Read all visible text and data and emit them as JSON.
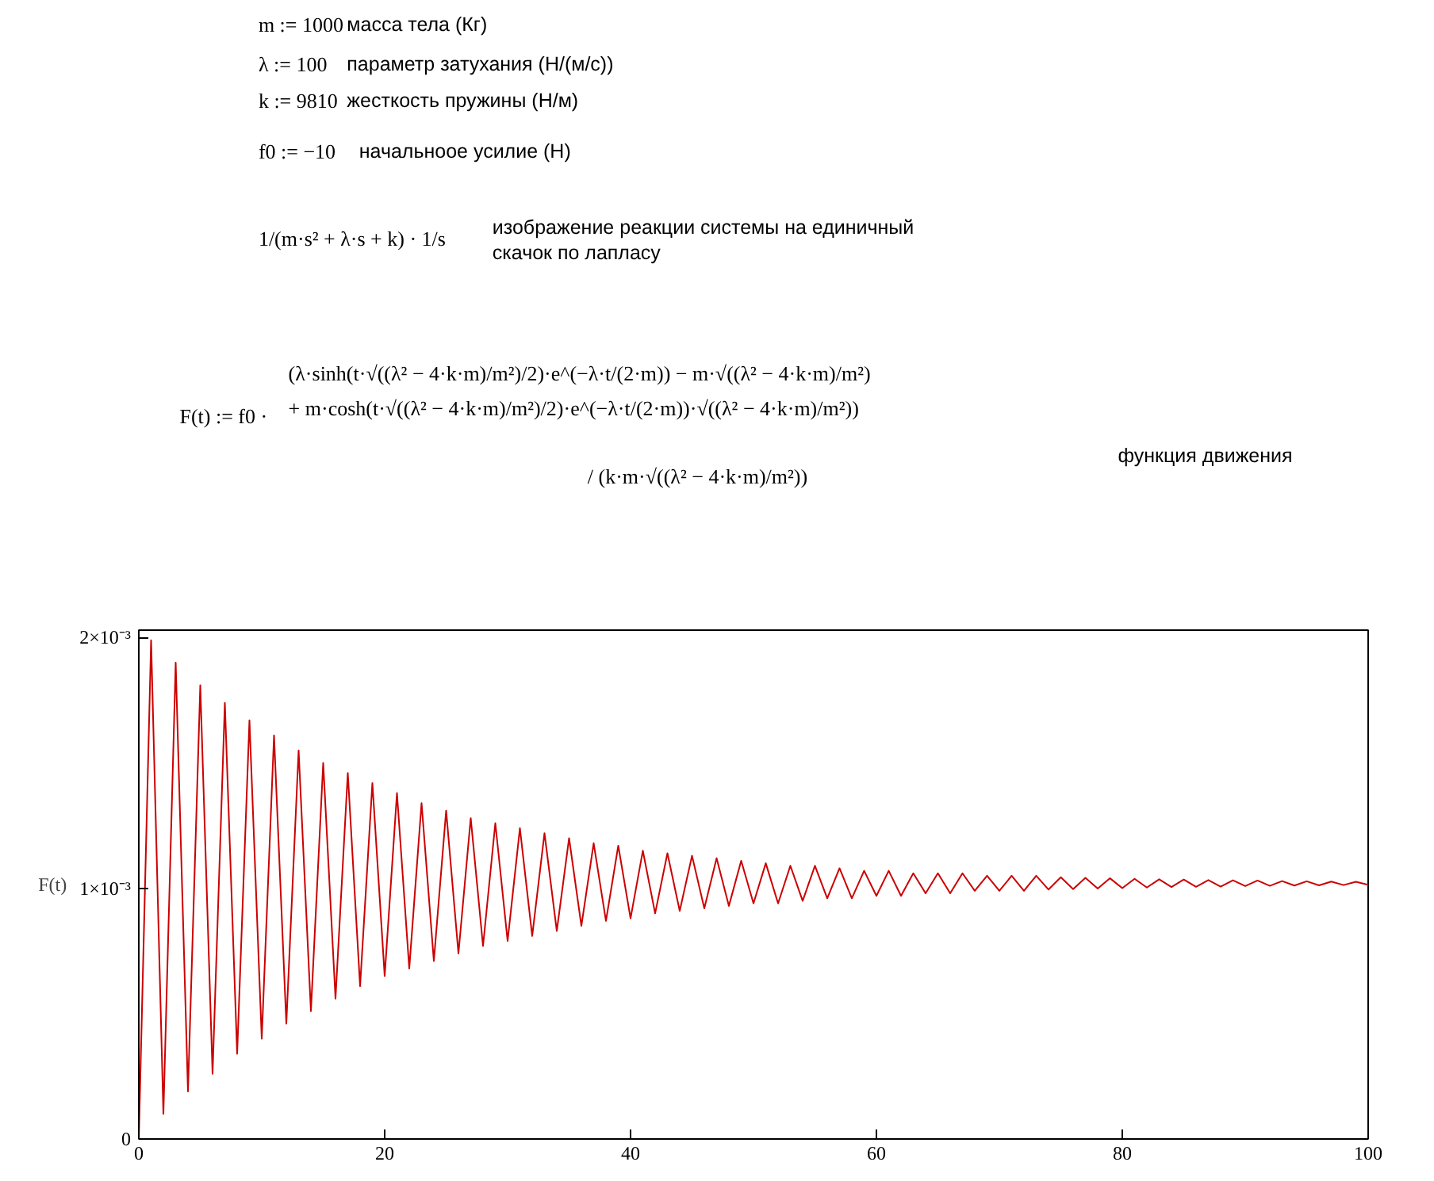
{
  "chart_data": {
    "type": "line",
    "annotations": [
      "m := 1000",
      "масса тела (Кг)",
      "λ := 100",
      "параметр затухания (Н/(м/с))",
      "k := 9810",
      "жесткость пружины (Н/м)",
      "f0 := −10",
      "начальноое усилие (Н)",
      "1/(m·s² + λ·s + k) · 1/s",
      "изображение реакции системы на единичный",
      "скачок по лапласу",
      "F(t) := f0 ·",
      "(λ·sinh(t·√((λ² − 4·k·m)/m²)/2)·e^(−λ·t/(2·m)) − m·√((λ² − 4·k·m)/m²)",
      "+ m·cosh(t·√((λ² − 4·k·m)/m²)/2)·e^(−λ·t/(2·m))·√((λ² − 4·k·m)/m²))",
      "/ (k·m·√((λ² − 4·k·m)/m²))",
      "функция движения"
    ],
    "ylabel": "F(t)",
    "xlim": [
      0,
      100
    ],
    "ylim": [
      0,
      0.00203
    ],
    "xticks": [
      0,
      20,
      40,
      60,
      80,
      100
    ],
    "yticks": [
      {
        "value": 0,
        "label": "0"
      },
      {
        "value": 0.001,
        "label": "1×10⁻³"
      },
      {
        "value": 0.002,
        "label": "2×10⁻³"
      }
    ],
    "x": [
      0,
      1,
      2,
      3,
      4,
      5,
      6,
      7,
      8,
      9,
      10,
      11,
      12,
      13,
      14,
      15,
      16,
      17,
      18,
      19,
      20,
      21,
      22,
      23,
      24,
      25,
      26,
      27,
      28,
      29,
      30,
      31,
      32,
      33,
      34,
      35,
      36,
      37,
      38,
      39,
      40,
      41,
      42,
      43,
      44,
      45,
      46,
      47,
      48,
      49,
      50,
      51,
      52,
      53,
      54,
      55,
      56,
      57,
      58,
      59,
      60,
      61,
      62,
      63,
      64,
      65,
      66,
      67,
      68,
      69,
      70,
      71,
      72,
      73,
      74,
      75,
      76,
      77,
      78,
      79,
      80,
      81,
      82,
      83,
      84,
      85,
      86,
      87,
      88,
      89,
      90,
      91,
      92,
      93,
      94,
      95,
      96,
      97,
      98,
      99,
      100
    ],
    "series": [
      {
        "color": "#cc0000",
        "values": [
          0,
          0.00199,
          0.0001,
          0.0019,
          0.00019,
          0.00181,
          0.00026,
          0.00174,
          0.00034,
          0.00167,
          0.0004,
          0.00161,
          0.00046,
          0.00155,
          0.00051,
          0.0015,
          0.00056,
          0.00146,
          0.00061,
          0.00142,
          0.00065,
          0.00138,
          0.00068,
          0.00134,
          0.00071,
          0.00131,
          0.00074,
          0.00128,
          0.00077,
          0.00126,
          0.00079,
          0.00124,
          0.00081,
          0.00122,
          0.00083,
          0.0012,
          0.00085,
          0.00118,
          0.00087,
          0.00117,
          0.00088,
          0.00115,
          0.0009,
          0.00114,
          0.00091,
          0.00113,
          0.00092,
          0.00112,
          0.00093,
          0.00111,
          0.00094,
          0.0011,
          0.00094,
          0.00109,
          0.00095,
          0.00109,
          0.00096,
          0.00108,
          0.00096,
          0.00107,
          0.00097,
          0.00107,
          0.00097,
          0.00106,
          0.00098,
          0.00106,
          0.00098,
          0.00106,
          0.00099,
          0.00105,
          0.00099,
          0.00105,
          0.00099,
          0.00105,
          0.000995,
          0.001044,
          0.000997,
          0.001042,
          0.000999,
          0.00104,
          0.001001,
          0.001038,
          0.001003,
          0.001036,
          0.001005,
          0.001035,
          0.001006,
          0.001033,
          0.001007,
          0.001032,
          0.001009,
          0.001031,
          0.00101,
          0.001029,
          0.001011,
          0.001028,
          0.001012,
          0.001027,
          0.001013,
          0.001026,
          0.001014
        ]
      }
    ]
  }
}
